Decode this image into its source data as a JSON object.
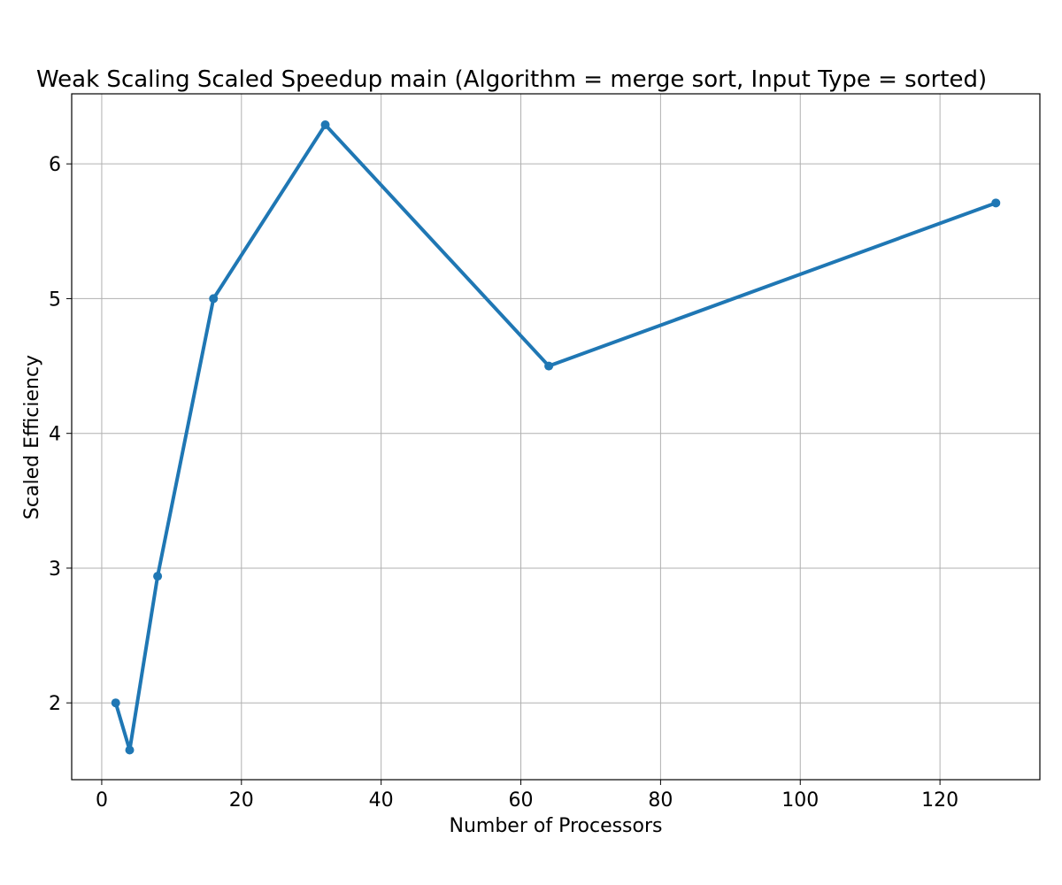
{
  "chart_data": {
    "type": "line",
    "title": "Weak Scaling Scaled Speedup main (Algorithm = merge sort, Input Type = sorted)",
    "xlabel": "Number of Processors",
    "ylabel": "Scaled Efficiency",
    "xlim": [
      -4.3,
      134.3
    ],
    "ylim": [
      1.43,
      6.52
    ],
    "xticks": [
      0,
      20,
      40,
      60,
      80,
      100,
      120
    ],
    "yticks": [
      2,
      3,
      4,
      5,
      6
    ],
    "grid": true,
    "series": [
      {
        "color": "#1f77b4",
        "marker": "circle",
        "x": [
          2,
          4,
          8,
          16,
          32,
          64,
          128
        ],
        "y": [
          2.0,
          1.65,
          2.94,
          5.0,
          6.29,
          4.5,
          5.71
        ]
      }
    ]
  }
}
